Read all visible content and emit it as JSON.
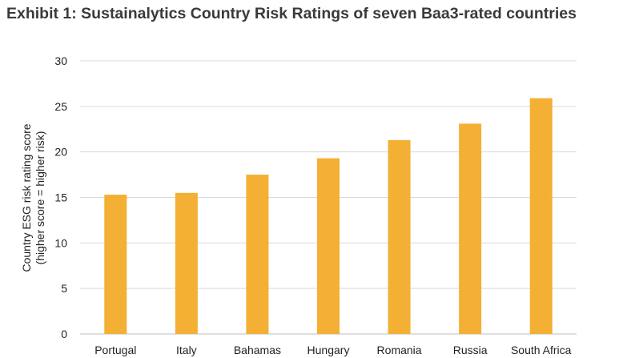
{
  "chart_data": {
    "type": "bar",
    "title": "Exhibit 1: Sustainalytics Country Risk Ratings of seven Baa3-rated countries",
    "ylabel_line1": "Country ESG risk rating score",
    "ylabel_line2": "(higher score = higher risk)",
    "xlabel": "",
    "categories": [
      "Portugal",
      "Italy",
      "Bahamas",
      "Hungary",
      "Romania",
      "Russia",
      "South Africa"
    ],
    "values": [
      15.3,
      15.5,
      17.5,
      19.3,
      21.3,
      23.1,
      25.9
    ],
    "ylim": [
      0,
      30
    ],
    "yticks": [
      0,
      5,
      10,
      15,
      20,
      25,
      30
    ],
    "grid": true,
    "legend": "none",
    "bar_color": "#F3B034",
    "grid_color": "#D9D9D9"
  }
}
